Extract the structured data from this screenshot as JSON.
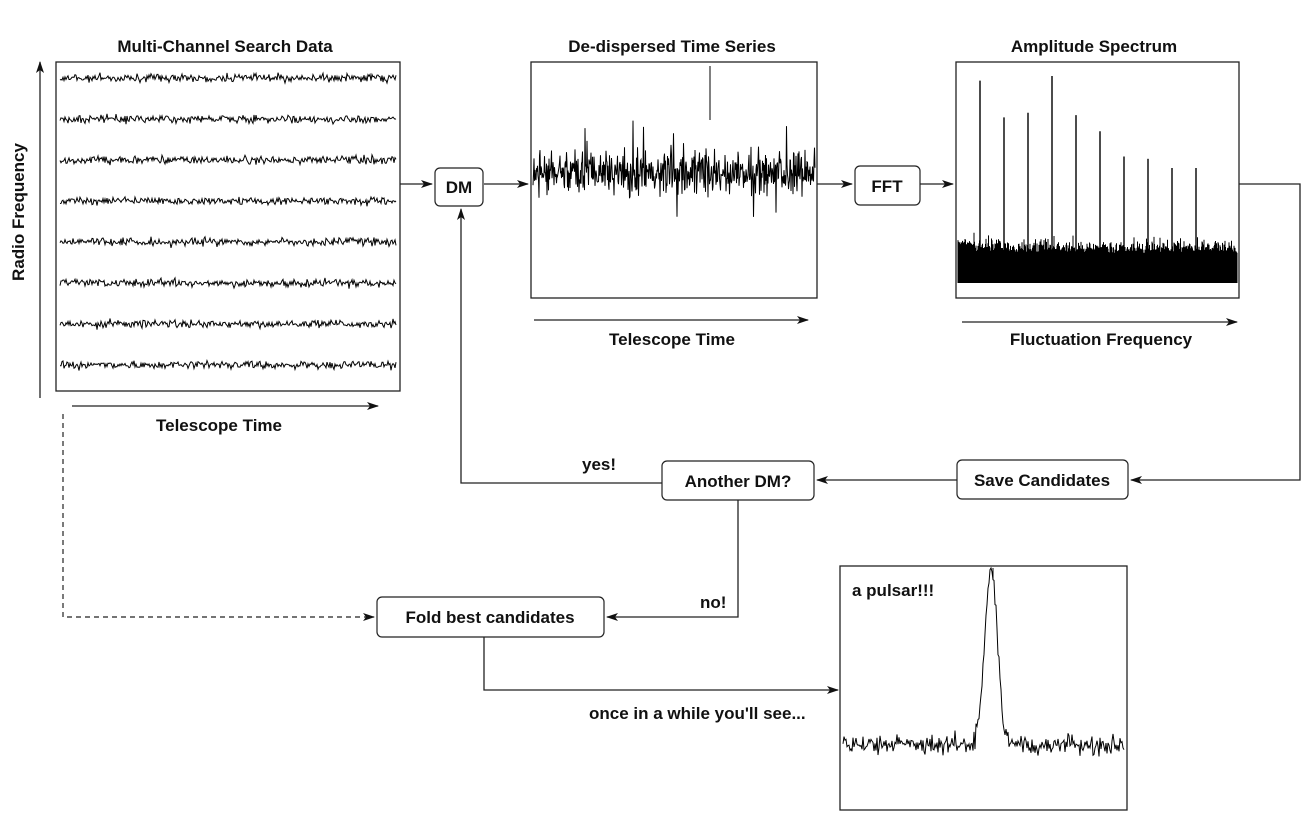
{
  "panels": {
    "search_data": {
      "title": "Multi-Channel Search Data",
      "xlabel": "Telescope Time",
      "ylabel": "Radio Frequency",
      "channels": 8
    },
    "time_series": {
      "title": "De-dispersed Time Series",
      "xlabel": "Telescope Time"
    },
    "spectrum": {
      "title": "Amplitude Spectrum",
      "xlabel": "Fluctuation Frequency",
      "harmonics": [
        0.88,
        0.72,
        0.74,
        0.9,
        0.73,
        0.66,
        0.55,
        0.54,
        0.5,
        0.5
      ]
    },
    "profile": {
      "annotation": "a pulsar!!!"
    }
  },
  "nodes": {
    "dm": "DM",
    "fft": "FFT",
    "save": "Save Candidates",
    "another_dm": "Another DM?",
    "fold": "Fold best candidates"
  },
  "edges": {
    "yes": "yes!",
    "no": "no!",
    "once": "once in a while you'll see..."
  }
}
